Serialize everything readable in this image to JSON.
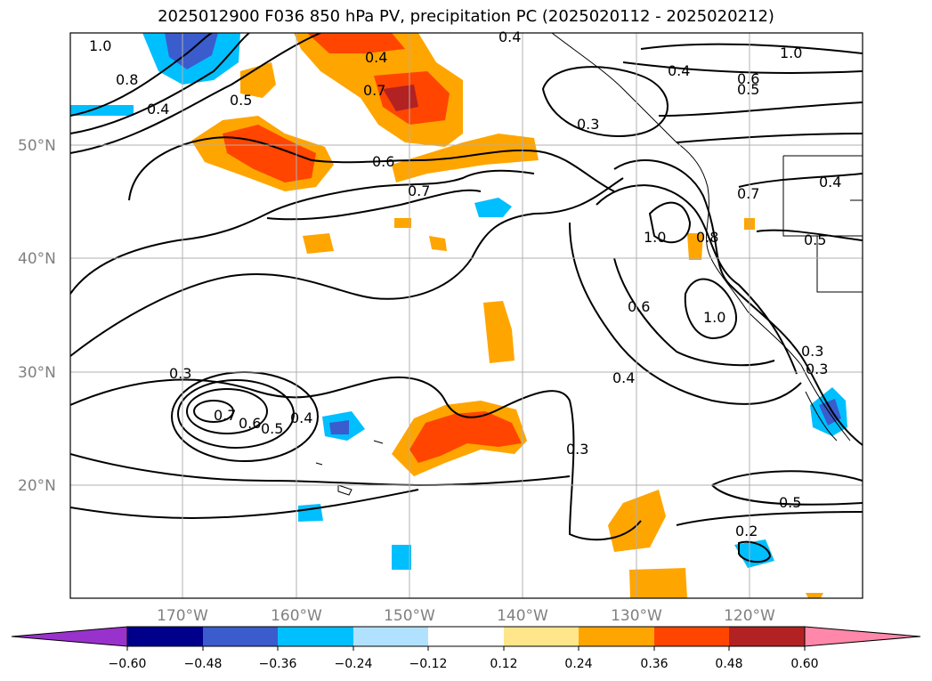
{
  "title": "2025012900 F036 850 hPa PV, precipitation PC (2025020112 - 2025020212)",
  "lat_labels": [
    "50°N",
    "40°N",
    "30°N",
    "20°N"
  ],
  "lon_labels": [
    "170°W",
    "160°W",
    "150°W",
    "140°W",
    "130°W",
    "120°W"
  ],
  "contour_labels": [
    "1.0",
    "0.8",
    "0.5",
    "0.4",
    "0.3",
    "0.6",
    "0.7",
    "0.4",
    "0.3",
    "0.4",
    "1.0",
    "0.5",
    "0.6",
    "0.7",
    "1.0",
    "0.8",
    "0.4",
    "0.5",
    "1.0",
    "0.6",
    "0.4",
    "0.3",
    "0.4",
    "0.3",
    "0.7",
    "0.6",
    "0.5",
    "0.4",
    "0.5",
    "0.2",
    "0.7",
    "0.3"
  ],
  "colorbar": {
    "ticks": [
      "−0.60",
      "−0.48",
      "−0.36",
      "−0.24",
      "−0.12",
      "0.12",
      "0.24",
      "0.36",
      "0.48",
      "0.60"
    ],
    "colors": [
      "#9932cc",
      "#00008b",
      "#3a5ccc",
      "#00bfff",
      "#b0e2ff",
      "#ffffff",
      "#ffe68a",
      "#ffa500",
      "#ff4500",
      "#b22222",
      "#ff88aa"
    ]
  },
  "shading_colors": {
    "light_blue": "#b0e2ff",
    "blue": "#00bfff",
    "mid_blue": "#3a5ccc",
    "yellow": "#ffe68a",
    "orange": "#ffa500",
    "red_orange": "#ff4500",
    "dark_red": "#b22222"
  }
}
